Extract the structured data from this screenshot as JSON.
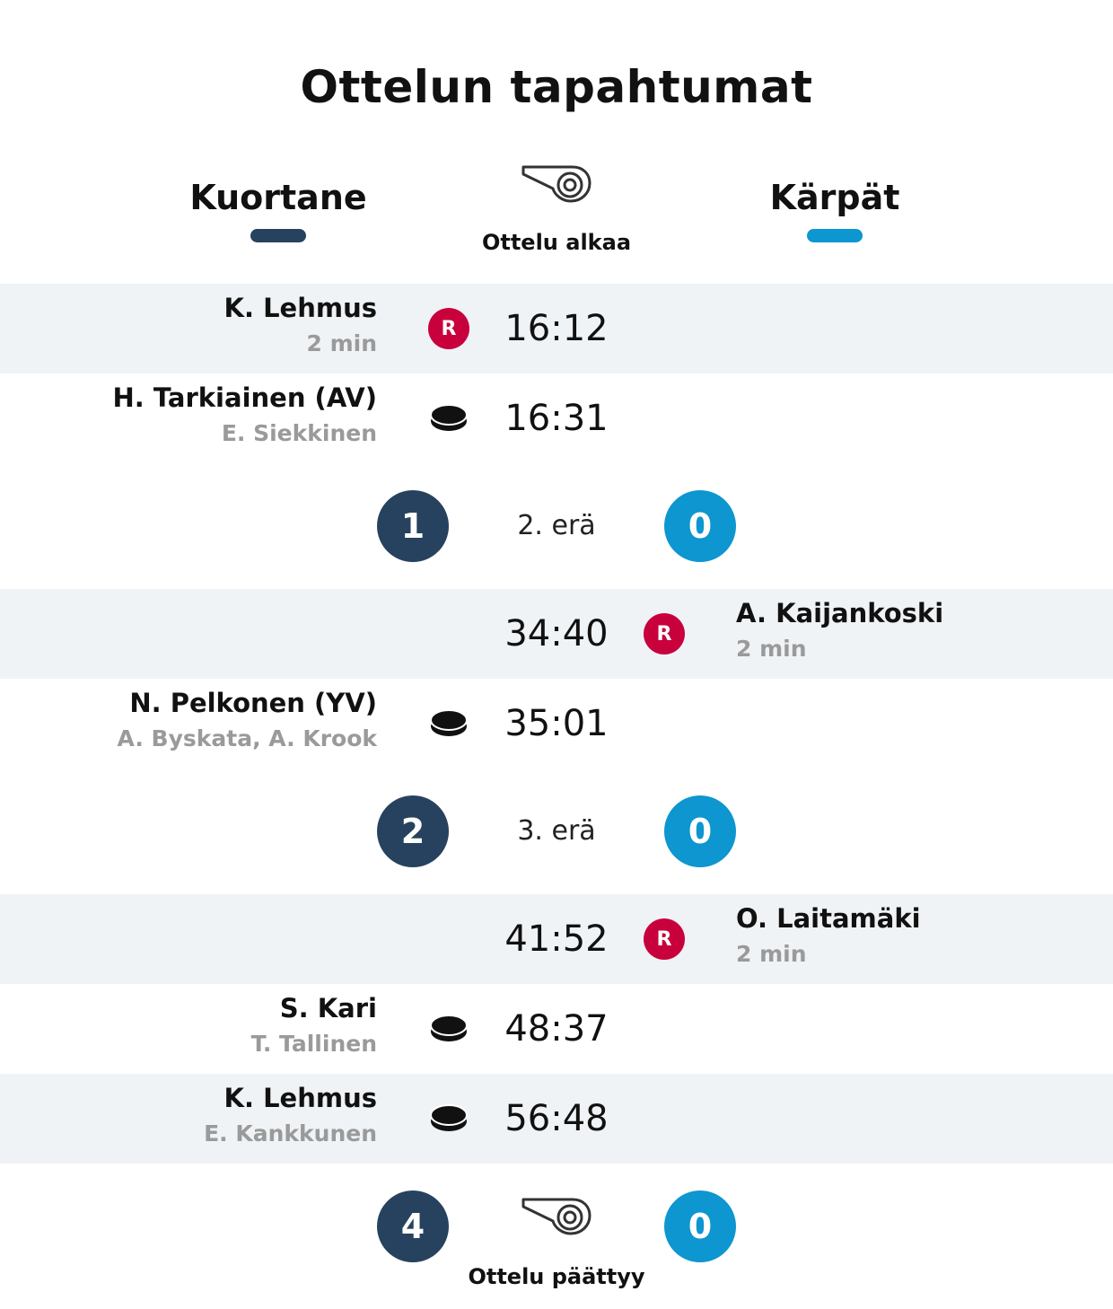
{
  "title": "Ottelun tapahtumat",
  "teams": {
    "home": {
      "name": "Kuortane",
      "color": "#27425e"
    },
    "away": {
      "name": "Kärpät",
      "color": "#0d96cf"
    }
  },
  "start": {
    "icon": "whistle-icon",
    "label": "Ottelu alkaa"
  },
  "events": [
    {
      "side": "home",
      "type": "penalty",
      "icon": "penalty-icon",
      "badge": "R",
      "player": "K. Lehmus",
      "detail": "2 min",
      "time": "16:12"
    },
    {
      "side": "home",
      "type": "goal",
      "icon": "puck-icon",
      "player": "H. Tarkiainen (AV)",
      "detail": "E. Siekkinen",
      "time": "16:31"
    },
    {
      "type": "period",
      "label": "2. erä",
      "home_score": "1",
      "away_score": "0"
    },
    {
      "side": "away",
      "type": "penalty",
      "icon": "penalty-icon",
      "badge": "R",
      "player": "A. Kaijankoski",
      "detail": "2 min",
      "time": "34:40"
    },
    {
      "side": "home",
      "type": "goal",
      "icon": "puck-icon",
      "player": "N. Pelkonen (YV)",
      "detail": "A. Byskata, A. Krook",
      "time": "35:01"
    },
    {
      "type": "period",
      "label": "3. erä",
      "home_score": "2",
      "away_score": "0"
    },
    {
      "side": "away",
      "type": "penalty",
      "icon": "penalty-icon",
      "badge": "R",
      "player": "O. Laitamäki",
      "detail": "2 min",
      "time": "41:52"
    },
    {
      "side": "home",
      "type": "goal",
      "icon": "puck-icon",
      "player": "S. Kari",
      "detail": "T. Tallinen",
      "time": "48:37"
    },
    {
      "side": "home",
      "type": "goal",
      "icon": "puck-icon",
      "player": "K. Lehmus",
      "detail": "E. Kankkunen",
      "time": "56:48"
    }
  ],
  "end": {
    "icon": "whistle-icon",
    "label": "Ottelu päättyy",
    "home_score": "4",
    "away_score": "0"
  },
  "colors": {
    "penalty": "#c8003c",
    "row_shade": "#eff3f6",
    "muted_text": "#9a9a9a"
  }
}
